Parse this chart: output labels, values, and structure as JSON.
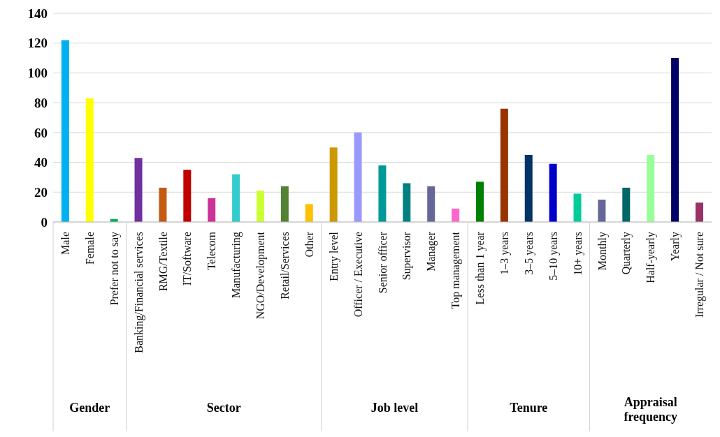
{
  "chart_data": {
    "type": "bar",
    "categories": [
      "Male",
      "Female",
      "Prefer not to say",
      "Banking/Financial services",
      "RMG/Textile",
      "IT/Software",
      "Telecom",
      "Manufacturing",
      "NGO/Development",
      "Retail/Services",
      "Other",
      "Entry level",
      "Officer / Executive",
      "Senior officer",
      "Supervisor",
      "Manager",
      "Top management",
      "Less than 1 year",
      "1–3 years",
      "3–5 years",
      "5–10 years",
      "10+ years",
      "Monthly",
      "Quarterly",
      "Half-yearly",
      "Yearly",
      "Irregular / Not sure"
    ],
    "values": [
      122,
      83,
      2,
      43,
      23,
      35,
      16,
      32,
      21,
      24,
      12,
      50,
      60,
      38,
      26,
      24,
      9,
      27,
      76,
      45,
      39,
      19,
      15,
      23,
      45,
      110,
      13
    ],
    "colors": [
      "#00b0f0",
      "#ffff00",
      "#00b050",
      "#7030a0",
      "#c55a11",
      "#c00000",
      "#cc3399",
      "#33cccc",
      "#ccff33",
      "#548235",
      "#ffc000",
      "#cc9900",
      "#9999ff",
      "#009999",
      "#008080",
      "#666699",
      "#ff66cc",
      "#008000",
      "#993300",
      "#003366",
      "#0000cc",
      "#00cc99",
      "#666699",
      "#006666",
      "#99ff99",
      "#000066",
      "#993366"
    ],
    "ylim": [
      0,
      140
    ],
    "yticks": [
      0,
      20,
      40,
      60,
      80,
      100,
      120,
      140
    ],
    "grid": "y",
    "annotations": [
      "Gender",
      "Sector",
      "Job level",
      "Tenure",
      "Appraisal frequency"
    ]
  }
}
